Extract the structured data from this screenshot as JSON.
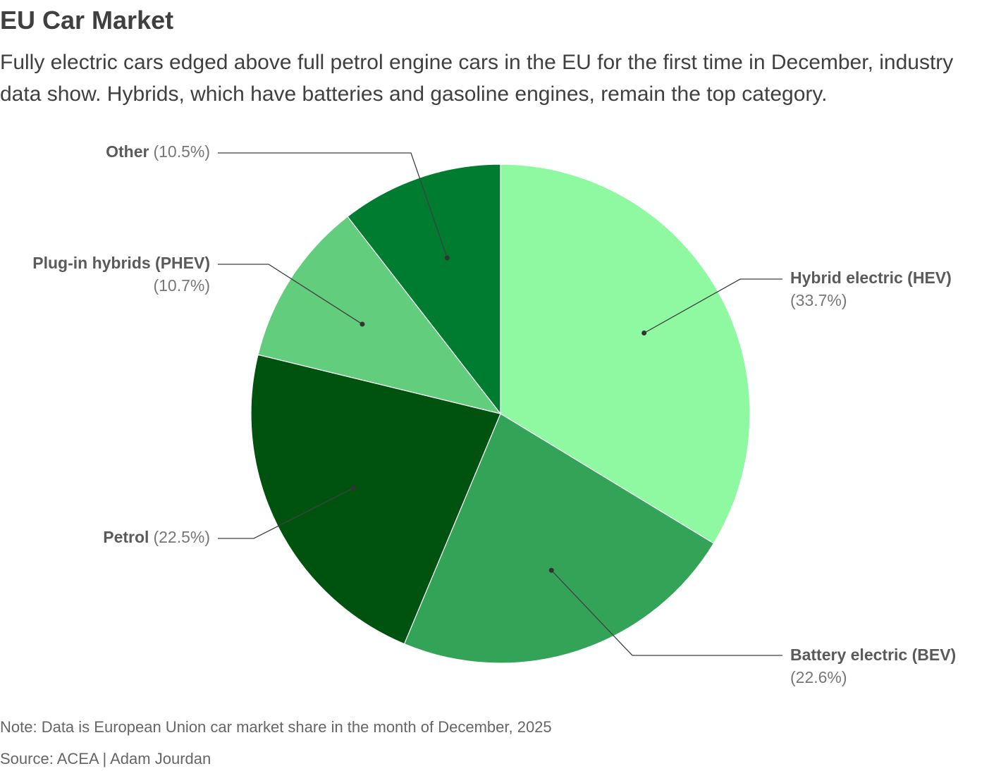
{
  "chart_data": {
    "type": "pie",
    "title": "EU Car Market",
    "subtitle": "Fully electric cars edged above full petrol engine cars in the EU for the first time in December, industry data show. Hybrids, which have batteries and gasoline engines, remain the top category.",
    "categories": [
      "Hybrid electric (HEV)",
      "Battery electric (BEV)",
      "Petrol",
      "Plug-in hybrids (PHEV)",
      "Other"
    ],
    "values": [
      33.7,
      22.6,
      22.5,
      10.7,
      10.5
    ],
    "value_labels": [
      "(33.7%)",
      "(22.6%)",
      "(22.5%)",
      "(10.7%)",
      "(10.5%)"
    ],
    "colors": [
      "#8ef9a0",
      "#33a457",
      "#00530f",
      "#62cd7c",
      "#007c30"
    ],
    "note": "Note: Data is European Union car market share in the month of December, 2025",
    "source": "Source: ACEA | Adam Jourdan"
  }
}
